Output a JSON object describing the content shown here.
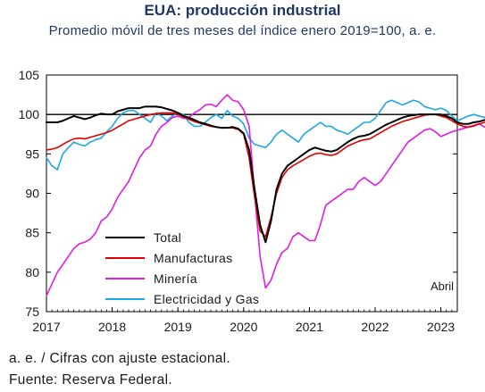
{
  "header": {
    "title": "EUA: producción industrial",
    "subtitle": "Promedio móvil de tres meses del índice enero 2019=100, a. e."
  },
  "footer": {
    "note": "a. e. / Cifras con ajuste estacional.",
    "source": "Fuente: Reserva Federal."
  },
  "chart_data": {
    "type": "line",
    "title": "EUA: producción industrial",
    "subtitle": "Promedio móvil de tres meses del índice enero 2019=100, a. e.",
    "xlabel": "",
    "ylabel": "",
    "xlim": [
      "2017-01",
      "2023-04"
    ],
    "ylim": [
      75,
      105
    ],
    "x_ticks": [
      "2017",
      "2018",
      "2019",
      "2020",
      "2021",
      "2022",
      "2023"
    ],
    "y_ticks": [
      75,
      80,
      85,
      90,
      95,
      100,
      105
    ],
    "reference_line": 100,
    "grid": false,
    "legend_position": "bottom-left",
    "annotation": "Abril",
    "series": [
      {
        "name": "Total",
        "color": "#000000",
        "start": "2017-01",
        "values": [
          99.0,
          99.0,
          99.0,
          99.2,
          99.5,
          99.8,
          99.6,
          99.4,
          99.6,
          99.9,
          100.1,
          100.0,
          100.0,
          100.4,
          100.6,
          100.8,
          100.8,
          100.8,
          101.0,
          101.0,
          101.0,
          100.9,
          100.7,
          100.5,
          100.2,
          99.8,
          99.6,
          99.3,
          99.0,
          98.8,
          98.6,
          98.4,
          98.3,
          98.3,
          98.4,
          98.2,
          97.6,
          95.5,
          90.5,
          86.0,
          83.8,
          86.5,
          90.5,
          92.5,
          93.5,
          94.0,
          94.5,
          95.0,
          95.5,
          95.8,
          95.6,
          95.4,
          95.3,
          95.5,
          96.0,
          96.5,
          96.9,
          97.2,
          97.3,
          97.5,
          97.9,
          98.3,
          98.7,
          99.0,
          99.3,
          99.6,
          99.8,
          99.9,
          100.0,
          100.0,
          100.0,
          100.0,
          100.0,
          99.8,
          99.5,
          99.0,
          98.8,
          98.8,
          99.0,
          99.1,
          99.3,
          99.5
        ]
      },
      {
        "name": "Manufacturas",
        "color": "#e00000",
        "start": "2017-01",
        "values": [
          95.5,
          95.6,
          95.8,
          96.2,
          96.6,
          96.9,
          97.0,
          96.9,
          97.1,
          97.3,
          97.5,
          97.7,
          98.0,
          98.4,
          98.8,
          99.2,
          99.4,
          99.6,
          99.8,
          100.0,
          100.1,
          100.2,
          100.2,
          100.2,
          100.0,
          99.7,
          99.4,
          99.1,
          98.9,
          98.7,
          98.5,
          98.4,
          98.3,
          98.3,
          98.3,
          98.1,
          97.5,
          94.5,
          89.5,
          85.2,
          84.5,
          87.0,
          90.0,
          92.0,
          93.0,
          93.5,
          93.9,
          94.3,
          94.7,
          95.0,
          95.1,
          94.9,
          94.8,
          95.0,
          95.5,
          96.0,
          96.3,
          96.6,
          96.8,
          96.9,
          97.3,
          97.7,
          98.1,
          98.5,
          98.8,
          99.1,
          99.3,
          99.5,
          99.7,
          99.9,
          100.0,
          100.0,
          99.8,
          99.6,
          99.2,
          98.8,
          98.5,
          98.4,
          98.6,
          98.8,
          99.0,
          99.1
        ]
      },
      {
        "name": "Minería",
        "color": "#e21ce0",
        "start": "2017-01",
        "values": [
          77.0,
          78.5,
          80.0,
          81.0,
          82.0,
          83.0,
          83.6,
          83.8,
          84.2,
          85.0,
          86.5,
          87.0,
          88.0,
          89.5,
          90.5,
          91.5,
          93.0,
          94.5,
          95.5,
          96.0,
          97.5,
          98.5,
          99.0,
          99.6,
          99.8,
          99.5,
          99.6,
          100.2,
          100.6,
          101.2,
          101.3,
          101.0,
          101.8,
          102.5,
          101.8,
          101.6,
          100.6,
          98.5,
          90.0,
          82.0,
          78.0,
          79.0,
          81.0,
          82.5,
          83.0,
          84.5,
          85.0,
          84.5,
          84.0,
          84.0,
          86.0,
          88.5,
          89.0,
          89.5,
          90.0,
          90.5,
          90.5,
          91.5,
          92.0,
          91.5,
          91.0,
          91.5,
          92.5,
          93.5,
          94.5,
          95.5,
          96.5,
          97.0,
          97.5,
          98.0,
          98.2,
          97.8,
          97.2,
          97.5,
          97.8,
          98.0,
          98.2,
          98.4,
          98.5,
          98.8,
          98.4,
          98.0
        ]
      },
      {
        "name": "Electricidad y Gas",
        "color": "#1ea7e1",
        "start": "2017-01",
        "values": [
          94.5,
          93.5,
          93.0,
          95.0,
          95.8,
          96.5,
          96.2,
          96.0,
          96.5,
          96.8,
          97.0,
          97.8,
          98.5,
          99.5,
          100.2,
          100.5,
          100.5,
          100.0,
          99.5,
          99.0,
          100.2,
          99.8,
          99.2,
          99.8,
          100.2,
          100.0,
          99.0,
          98.5,
          98.5,
          99.0,
          99.6,
          100.0,
          99.5,
          100.5,
          99.8,
          99.5,
          98.8,
          97.0,
          96.2,
          96.0,
          95.8,
          96.5,
          97.5,
          98.0,
          97.5,
          97.0,
          96.5,
          97.5,
          98.0,
          98.5,
          99.0,
          98.5,
          98.5,
          98.0,
          97.8,
          97.5,
          98.0,
          98.5,
          99.0,
          99.0,
          99.5,
          100.5,
          101.5,
          101.8,
          101.5,
          101.2,
          101.5,
          101.8,
          101.6,
          101.0,
          100.8,
          100.6,
          100.8,
          100.5,
          99.8,
          99.2,
          99.5,
          99.8,
          100.0,
          99.8,
          99.6,
          100.4
        ]
      }
    ]
  }
}
